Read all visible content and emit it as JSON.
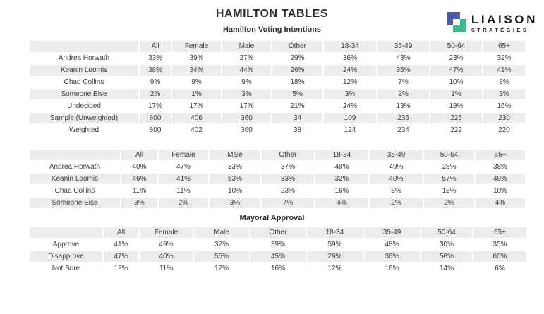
{
  "page": {
    "title": "HAMILTON TABLES"
  },
  "logo": {
    "name": "LIAISON",
    "tagline": "STRATÉGIES",
    "blue": "#4f5aa8",
    "green": "#3fba8e"
  },
  "colors": {
    "row_stripe": "#ececec",
    "text": "#3d3d3d"
  },
  "tables": [
    {
      "title": "Hamilton Voting Intentions",
      "columns": [
        "",
        "All",
        "Female",
        "Male",
        "Other",
        "18-34",
        "35-49",
        "50-64",
        "65+"
      ],
      "rows": [
        [
          "Andrea Horwath",
          "33%",
          "39%",
          "27%",
          "29%",
          "36%",
          "43%",
          "23%",
          "32%"
        ],
        [
          "Keanin Loomis",
          "38%",
          "34%",
          "44%",
          "26%",
          "24%",
          "35%",
          "47%",
          "41%"
        ],
        [
          "Chad Collins",
          "9%",
          "9%",
          "9%",
          "18%",
          "12%",
          "7%",
          "10%",
          "8%"
        ],
        [
          "Someone Else",
          "2%",
          "1%",
          "3%",
          "5%",
          "3%",
          "2%",
          "1%",
          "3%"
        ],
        [
          "Undecided",
          "17%",
          "17%",
          "17%",
          "21%",
          "24%",
          "13%",
          "18%",
          "16%"
        ],
        [
          "Sample (Unweighted)",
          "800",
          "406",
          "360",
          "34",
          "109",
          "236",
          "225",
          "230"
        ],
        [
          "Weighted",
          "800",
          "402",
          "360",
          "38",
          "124",
          "234",
          "222",
          "220"
        ]
      ]
    },
    {
      "title": "",
      "columns": [
        "",
        "All",
        "Female",
        "Male",
        "Other",
        "18-34",
        "35-49",
        "50-64",
        "65+"
      ],
      "rows": [
        [
          "Andrea Horwath",
          "40%",
          "47%",
          "33%",
          "37%",
          "48%",
          "49%",
          "28%",
          "38%"
        ],
        [
          "Keanin Loomis",
          "46%",
          "41%",
          "53%",
          "33%",
          "32%",
          "40%",
          "57%",
          "49%"
        ],
        [
          "Chad Collins",
          "11%",
          "11%",
          "10%",
          "23%",
          "16%",
          "8%",
          "13%",
          "10%"
        ],
        [
          "Someone Else",
          "3%",
          "2%",
          "3%",
          "7%",
          "4%",
          "2%",
          "2%",
          "4%"
        ]
      ]
    },
    {
      "title": "Mayoral Approval",
      "columns": [
        "",
        "All",
        "Female",
        "Male",
        "Other",
        "18-34",
        "35-49",
        "50-64",
        "65+"
      ],
      "rows": [
        [
          "Approve",
          "41%",
          "49%",
          "32%",
          "39%",
          "59%",
          "48%",
          "30%",
          "35%"
        ],
        [
          "Disapprove",
          "47%",
          "40%",
          "55%",
          "45%",
          "29%",
          "36%",
          "56%",
          "60%"
        ],
        [
          "Not Sure",
          "12%",
          "11%",
          "12%",
          "16%",
          "12%",
          "16%",
          "14%",
          "6%"
        ]
      ]
    }
  ]
}
